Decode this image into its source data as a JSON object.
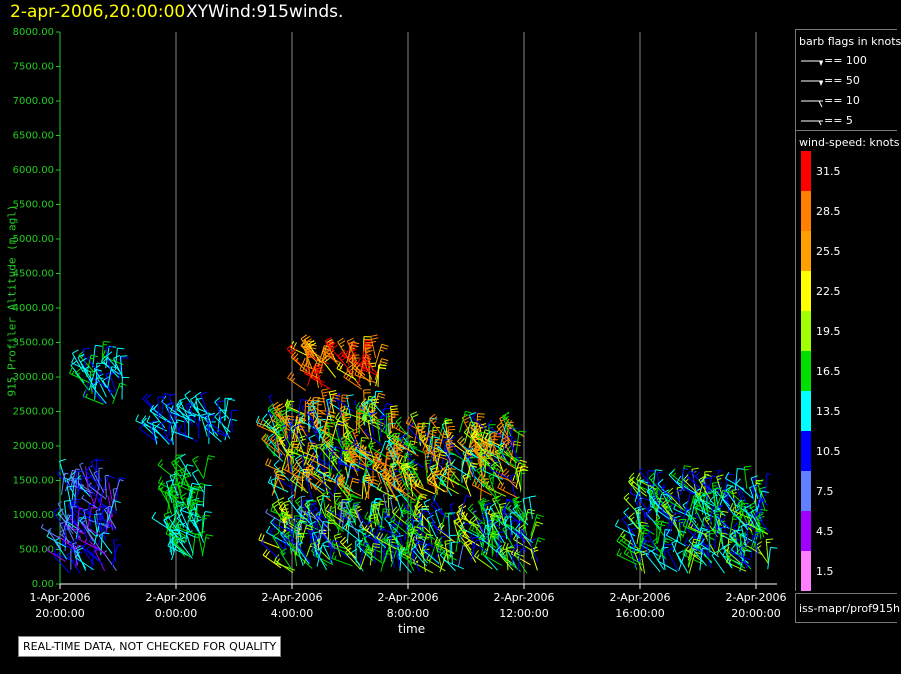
{
  "header": {
    "time": "2-apr-2006,20:00:00",
    "name": "XYWind:915winds."
  },
  "chart_data": {
    "type": "wind-barb",
    "title": "XYWind:915winds.",
    "xlabel": "time",
    "ylabel": "915 Profiler Altitude (m agl)",
    "ylim": [
      0,
      8000
    ],
    "y_ticks": [
      "8000.00",
      "7500.00",
      "7000.00",
      "6500.00",
      "6000.00",
      "5500.00",
      "5000.00",
      "4500.00",
      "4000.00",
      "3500.00",
      "3000.00",
      "2500.00",
      "2000.00",
      "1500.00",
      "1000.00",
      "500.00",
      "0.00"
    ],
    "x_ticks": [
      {
        "date": "1-Apr-2006",
        "time": "20:00:00",
        "hour": 0
      },
      {
        "date": "2-Apr-2006",
        "time": "0:00:00",
        "hour": 4
      },
      {
        "date": "2-Apr-2006",
        "time": "4:00:00",
        "hour": 8
      },
      {
        "date": "2-Apr-2006",
        "time": "8:00:00",
        "hour": 12
      },
      {
        "date": "2-Apr-2006",
        "time": "12:00:00",
        "hour": 16
      },
      {
        "date": "2-Apr-2006",
        "time": "16:00:00",
        "hour": 20
      },
      {
        "date": "2-Apr-2006",
        "time": "20:00:00",
        "hour": 24
      }
    ],
    "grid": "vertical",
    "clusters": [
      {
        "h0": 0.0,
        "h1": 2.0,
        "a0": 150,
        "a1": 1500,
        "s0": 4,
        "s1": 14
      },
      {
        "h0": 0.7,
        "h1": 2.2,
        "a0": 2600,
        "a1": 3200,
        "s0": 10,
        "s1": 16
      },
      {
        "h0": 3.3,
        "h1": 6.0,
        "a0": 2000,
        "a1": 2500,
        "s0": 10,
        "s1": 15
      },
      {
        "h0": 3.7,
        "h1": 5.0,
        "a0": 300,
        "a1": 1600,
        "s0": 12,
        "s1": 18
      },
      {
        "h0": 7.3,
        "h1": 11.5,
        "a0": 1200,
        "a1": 2500,
        "s0": 9,
        "s1": 30
      },
      {
        "h0": 8.3,
        "h1": 11.0,
        "a0": 2800,
        "a1": 3300,
        "s0": 22,
        "s1": 32
      },
      {
        "h0": 7.5,
        "h1": 16.5,
        "a0": 150,
        "a1": 1000,
        "s0": 8,
        "s1": 22
      },
      {
        "h0": 11.5,
        "h1": 16.0,
        "a0": 1200,
        "a1": 2200,
        "s0": 10,
        "s1": 30
      },
      {
        "h0": 19.8,
        "h1": 24.5,
        "a0": 150,
        "a1": 1400,
        "s0": 9,
        "s1": 20
      }
    ]
  },
  "legend": {
    "flags_title": "barb flags in knots",
    "flags": [
      {
        "label": "== 100",
        "kind": "pennant"
      },
      {
        "label": "== 50",
        "kind": "pennant"
      },
      {
        "label": "== 10",
        "kind": "full"
      },
      {
        "label": "== 5",
        "kind": "half"
      }
    ],
    "color_title": "wind-speed: knots",
    "colors": [
      {
        "label": "31.5",
        "color": "#ff0000"
      },
      {
        "label": "28.5",
        "color": "#ff8000"
      },
      {
        "label": "25.5",
        "color": "#ffa000"
      },
      {
        "label": "22.5",
        "color": "#ffff00"
      },
      {
        "label": "19.5",
        "color": "#a0ff00"
      },
      {
        "label": "16.5",
        "color": "#00e000"
      },
      {
        "label": "13.5",
        "color": "#00ffff"
      },
      {
        "label": "10.5",
        "color": "#0000ff"
      },
      {
        "label": "7.5",
        "color": "#6080ff"
      },
      {
        "label": "4.5",
        "color": "#a000ff"
      },
      {
        "label": "1.5",
        "color": "#ff80ff"
      }
    ]
  },
  "source": "iss-mapr/prof915h",
  "notice": "REAL-TIME DATA, NOT CHECKED FOR QUALITY"
}
